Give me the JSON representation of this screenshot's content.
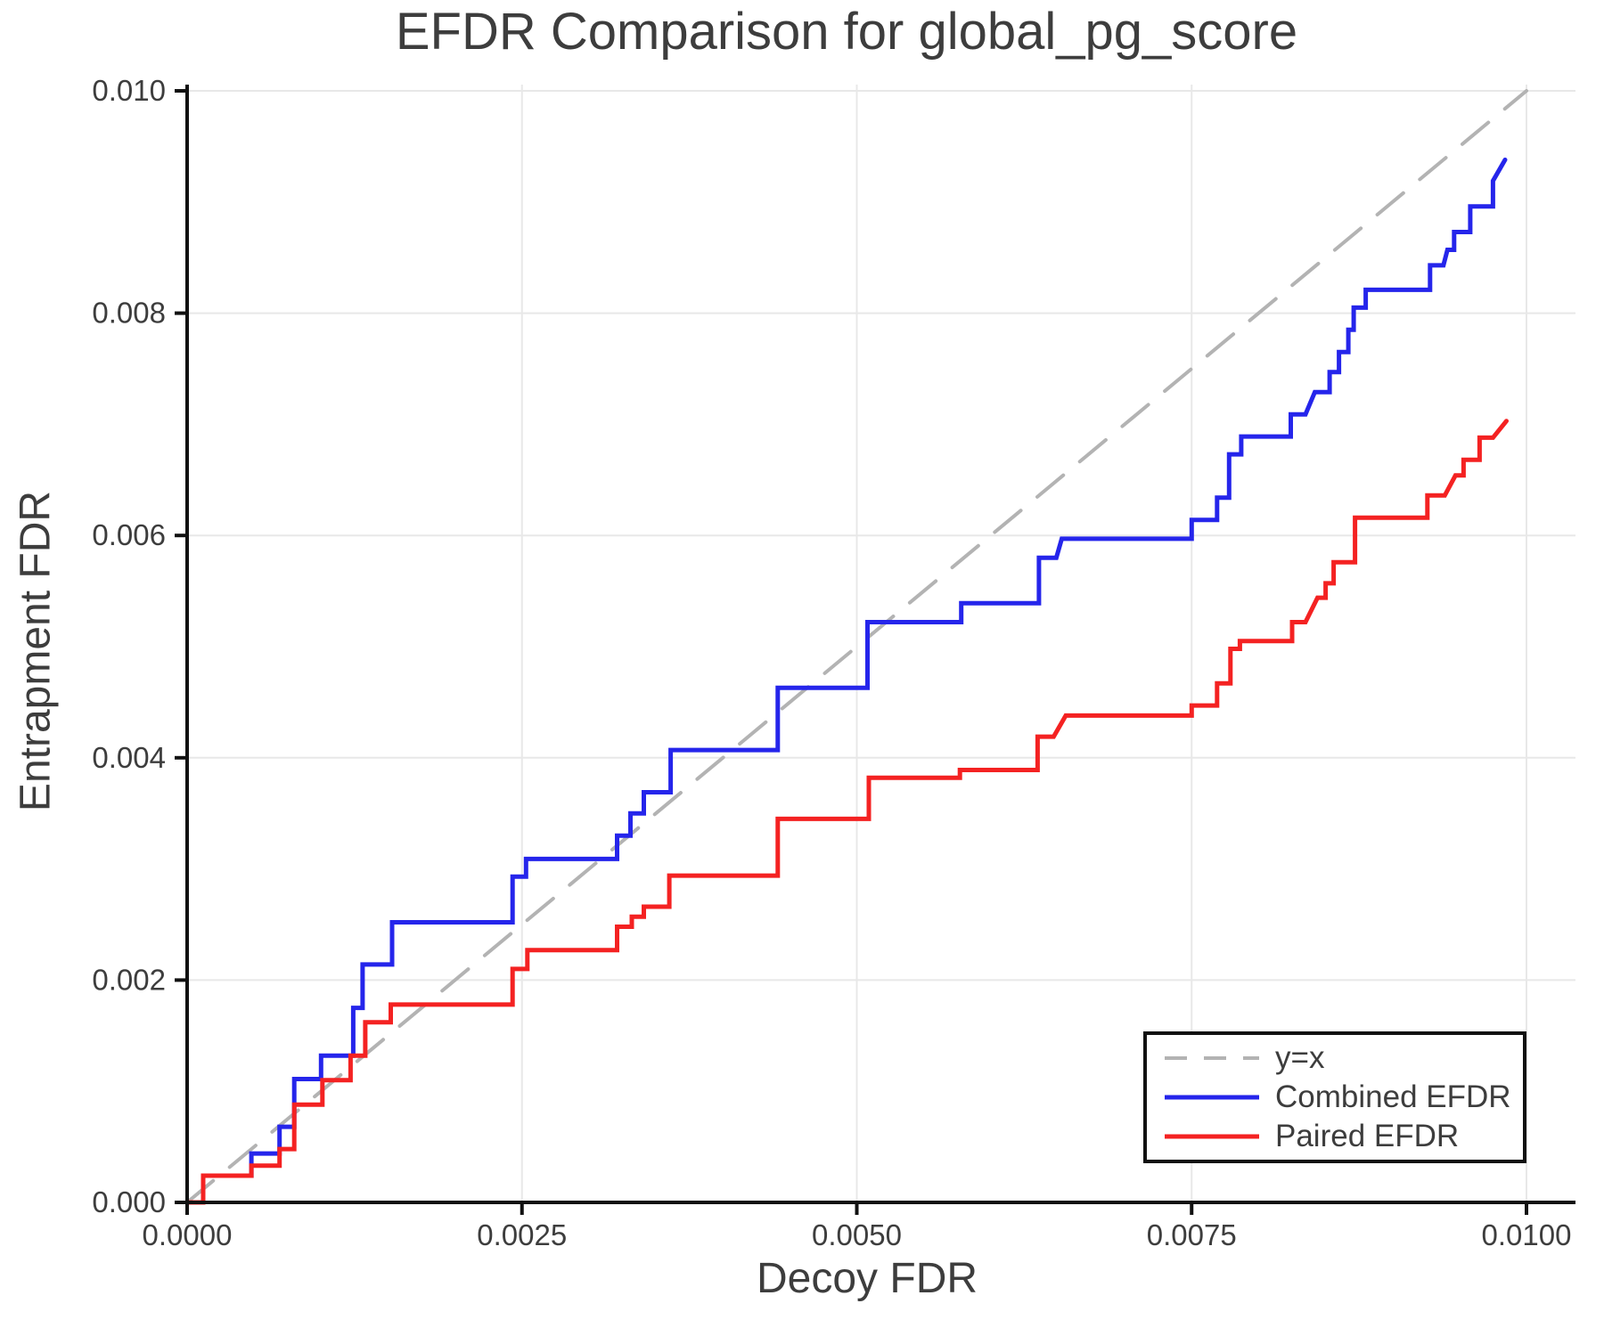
{
  "chart_data": {
    "type": "line",
    "title": "EFDR Comparison for global_pg_score",
    "xlabel": "Decoy FDR",
    "ylabel": "Entrapment FDR",
    "xlim": [
      0.0,
      0.01
    ],
    "ylim": [
      0.0,
      0.01
    ],
    "grid": true,
    "legend_position": "lower right",
    "x_ticks": {
      "values": [
        0.0,
        0.0025,
        0.005,
        0.0075,
        0.01
      ],
      "labels": [
        "0.0000",
        "0.0025",
        "0.0050",
        "0.0075",
        "0.0100"
      ]
    },
    "y_ticks": {
      "values": [
        0.0,
        0.002,
        0.004,
        0.006,
        0.008,
        0.01
      ],
      "labels": [
        "0.000",
        "0.002",
        "0.004",
        "0.006",
        "0.008",
        "0.010"
      ]
    },
    "style": {
      "grid_color": "#e8e8e8",
      "axis_color": "#111111",
      "text_color": "#3d3d3d",
      "background": "#ffffff"
    },
    "series": [
      {
        "name": "y=x",
        "color": "#b3b3b3",
        "width": 4,
        "dash": "38 24",
        "legend_dash": "25 19",
        "points": [
          [
            0.0,
            0.0
          ],
          [
            0.01,
            0.01
          ]
        ]
      },
      {
        "name": "Combined EFDR",
        "color": "#2525eb",
        "width": 5,
        "dash": "",
        "legend_dash": "",
        "points": [
          [
            0.0,
            0.0
          ],
          [
            0.00012,
            0.0
          ],
          [
            0.00012,
            0.00024
          ],
          [
            0.00048,
            0.00024
          ],
          [
            0.00048,
            0.00044
          ],
          [
            0.00069,
            0.00044
          ],
          [
            0.00069,
            0.00068
          ],
          [
            0.0008,
            0.00068
          ],
          [
            0.0008,
            0.00111
          ],
          [
            0.001,
            0.00111
          ],
          [
            0.001,
            0.00132
          ],
          [
            0.00124,
            0.00132
          ],
          [
            0.00124,
            0.00175
          ],
          [
            0.00131,
            0.00175
          ],
          [
            0.00131,
            0.00214
          ],
          [
            0.00153,
            0.00214
          ],
          [
            0.00153,
            0.00252
          ],
          [
            0.00243,
            0.00252
          ],
          [
            0.00243,
            0.00293
          ],
          [
            0.00253,
            0.00293
          ],
          [
            0.00253,
            0.00309
          ],
          [
            0.00321,
            0.00309
          ],
          [
            0.00321,
            0.0033
          ],
          [
            0.00331,
            0.0033
          ],
          [
            0.00331,
            0.0035
          ],
          [
            0.00341,
            0.0035
          ],
          [
            0.00341,
            0.00369
          ],
          [
            0.00361,
            0.00369
          ],
          [
            0.00361,
            0.00407
          ],
          [
            0.00441,
            0.00407
          ],
          [
            0.00441,
            0.00463
          ],
          [
            0.00508,
            0.00463
          ],
          [
            0.00508,
            0.00522
          ],
          [
            0.00578,
            0.00522
          ],
          [
            0.00578,
            0.00539
          ],
          [
            0.00636,
            0.00539
          ],
          [
            0.00636,
            0.0058
          ],
          [
            0.00649,
            0.0058
          ],
          [
            0.00653,
            0.00597
          ],
          [
            0.0075,
            0.00597
          ],
          [
            0.0075,
            0.00614
          ],
          [
            0.00769,
            0.00614
          ],
          [
            0.00769,
            0.00634
          ],
          [
            0.00778,
            0.00634
          ],
          [
            0.00778,
            0.00673
          ],
          [
            0.00787,
            0.00673
          ],
          [
            0.00787,
            0.00689
          ],
          [
            0.00824,
            0.00689
          ],
          [
            0.00824,
            0.00709
          ],
          [
            0.00835,
            0.00709
          ],
          [
            0.00842,
            0.00729
          ],
          [
            0.00853,
            0.00729
          ],
          [
            0.00853,
            0.00747
          ],
          [
            0.0086,
            0.00747
          ],
          [
            0.0086,
            0.00765
          ],
          [
            0.00867,
            0.00765
          ],
          [
            0.00867,
            0.00785
          ],
          [
            0.00871,
            0.00785
          ],
          [
            0.00871,
            0.00805
          ],
          [
            0.0088,
            0.00805
          ],
          [
            0.0088,
            0.00821
          ],
          [
            0.00928,
            0.00821
          ],
          [
            0.00928,
            0.00843
          ],
          [
            0.00938,
            0.00843
          ],
          [
            0.00941,
            0.00857
          ],
          [
            0.00946,
            0.00857
          ],
          [
            0.00946,
            0.00873
          ],
          [
            0.00958,
            0.00873
          ],
          [
            0.00958,
            0.00896
          ],
          [
            0.00975,
            0.00896
          ],
          [
            0.00975,
            0.00919
          ],
          [
            0.00984,
            0.00938
          ]
        ]
      },
      {
        "name": "Paired EFDR",
        "color": "#f42222",
        "width": 5,
        "dash": "",
        "legend_dash": "",
        "points": [
          [
            0.0,
            0.0
          ],
          [
            0.00012,
            0.0
          ],
          [
            0.00012,
            0.00024
          ],
          [
            0.00048,
            0.00024
          ],
          [
            0.00048,
            0.00033
          ],
          [
            0.00069,
            0.00033
          ],
          [
            0.00069,
            0.00048
          ],
          [
            0.0008,
            0.00048
          ],
          [
            0.0008,
            0.00088
          ],
          [
            0.00101,
            0.00088
          ],
          [
            0.00101,
            0.0011
          ],
          [
            0.00122,
            0.0011
          ],
          [
            0.00122,
            0.00132
          ],
          [
            0.00133,
            0.00132
          ],
          [
            0.00133,
            0.00162
          ],
          [
            0.00152,
            0.00162
          ],
          [
            0.00152,
            0.00178
          ],
          [
            0.00243,
            0.00178
          ],
          [
            0.00243,
            0.0021
          ],
          [
            0.00254,
            0.0021
          ],
          [
            0.00254,
            0.00227
          ],
          [
            0.00321,
            0.00227
          ],
          [
            0.00321,
            0.00248
          ],
          [
            0.00332,
            0.00248
          ],
          [
            0.00332,
            0.00257
          ],
          [
            0.00341,
            0.00257
          ],
          [
            0.00341,
            0.00266
          ],
          [
            0.0036,
            0.00266
          ],
          [
            0.0036,
            0.00294
          ],
          [
            0.00441,
            0.00294
          ],
          [
            0.00441,
            0.00345
          ],
          [
            0.00509,
            0.00345
          ],
          [
            0.00509,
            0.00382
          ],
          [
            0.00577,
            0.00382
          ],
          [
            0.00577,
            0.00389
          ],
          [
            0.00635,
            0.00389
          ],
          [
            0.00635,
            0.00419
          ],
          [
            0.00647,
            0.00419
          ],
          [
            0.00656,
            0.00438
          ],
          [
            0.0075,
            0.00438
          ],
          [
            0.0075,
            0.00447
          ],
          [
            0.00769,
            0.00447
          ],
          [
            0.00769,
            0.00467
          ],
          [
            0.00779,
            0.00467
          ],
          [
            0.00779,
            0.00498
          ],
          [
            0.00786,
            0.00498
          ],
          [
            0.00786,
            0.00505
          ],
          [
            0.00825,
            0.00505
          ],
          [
            0.00825,
            0.00522
          ],
          [
            0.00835,
            0.00522
          ],
          [
            0.00844,
            0.00544
          ],
          [
            0.0085,
            0.00544
          ],
          [
            0.0085,
            0.00557
          ],
          [
            0.00856,
            0.00557
          ],
          [
            0.00856,
            0.00576
          ],
          [
            0.00872,
            0.00576
          ],
          [
            0.00872,
            0.00616
          ],
          [
            0.00926,
            0.00616
          ],
          [
            0.00926,
            0.00636
          ],
          [
            0.00939,
            0.00636
          ],
          [
            0.00947,
            0.00654
          ],
          [
            0.00953,
            0.00654
          ],
          [
            0.00953,
            0.00668
          ],
          [
            0.00965,
            0.00668
          ],
          [
            0.00965,
            0.00688
          ],
          [
            0.00975,
            0.00688
          ],
          [
            0.00985,
            0.00703
          ]
        ]
      }
    ]
  }
}
